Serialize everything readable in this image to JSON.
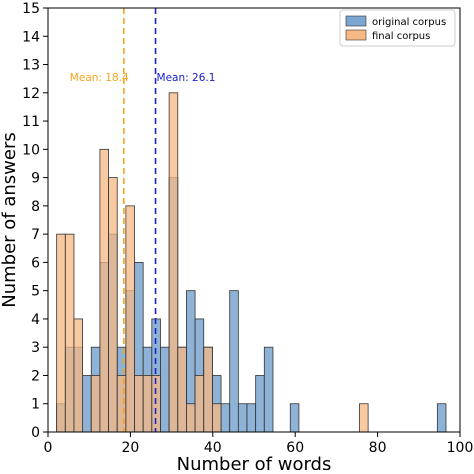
{
  "chart_data": {
    "type": "bar",
    "subtype": "overlapping-histogram",
    "xlabel": "Number of words",
    "ylabel": "Number of answers",
    "xlim": [
      0,
      100
    ],
    "ylim": [
      0,
      15
    ],
    "xticks": [
      0,
      20,
      40,
      60,
      80,
      100
    ],
    "yticks": [
      0,
      1,
      2,
      3,
      4,
      5,
      6,
      7,
      8,
      9,
      10,
      11,
      12,
      13,
      14,
      15
    ],
    "grid": false,
    "legend_position": "top-right",
    "bin_width": 2.1,
    "series": [
      {
        "name": "original corpus",
        "color": "#7aa6cf",
        "bins": [
          [
            2.1,
            1
          ],
          [
            4.2,
            3
          ],
          [
            6.3,
            3
          ],
          [
            8.4,
            2
          ],
          [
            10.5,
            3
          ],
          [
            12.6,
            6
          ],
          [
            14.7,
            7
          ],
          [
            16.8,
            3
          ],
          [
            18.9,
            5
          ],
          [
            21.0,
            6
          ],
          [
            23.1,
            3
          ],
          [
            25.2,
            4
          ],
          [
            27.3,
            3
          ],
          [
            29.4,
            9
          ],
          [
            31.5,
            3
          ],
          [
            33.6,
            5
          ],
          [
            35.7,
            4
          ],
          [
            37.8,
            3
          ],
          [
            39.9,
            2
          ],
          [
            42.0,
            1
          ],
          [
            44.1,
            5
          ],
          [
            46.2,
            1
          ],
          [
            48.3,
            1
          ],
          [
            50.4,
            2
          ],
          [
            52.5,
            3
          ],
          [
            58.8,
            1
          ],
          [
            94.5,
            1
          ]
        ]
      },
      {
        "name": "final corpus",
        "color": "#f7b883",
        "bins": [
          [
            2.1,
            7
          ],
          [
            4.2,
            7
          ],
          [
            6.3,
            4
          ],
          [
            10.5,
            2
          ],
          [
            12.6,
            10
          ],
          [
            14.7,
            9
          ],
          [
            16.8,
            2
          ],
          [
            18.9,
            8
          ],
          [
            21.0,
            2
          ],
          [
            23.1,
            2
          ],
          [
            25.2,
            2
          ],
          [
            29.4,
            12
          ],
          [
            31.5,
            3
          ],
          [
            33.6,
            1
          ],
          [
            35.7,
            2
          ],
          [
            37.8,
            3
          ],
          [
            39.9,
            1
          ],
          [
            75.6,
            1
          ]
        ]
      }
    ],
    "mean_lines": [
      {
        "label": "Mean: 18.4",
        "value": 18.4,
        "color": "#f5a51a"
      },
      {
        "label": "Mean: 26.1",
        "value": 26.1,
        "color": "#1a22c8"
      }
    ]
  }
}
